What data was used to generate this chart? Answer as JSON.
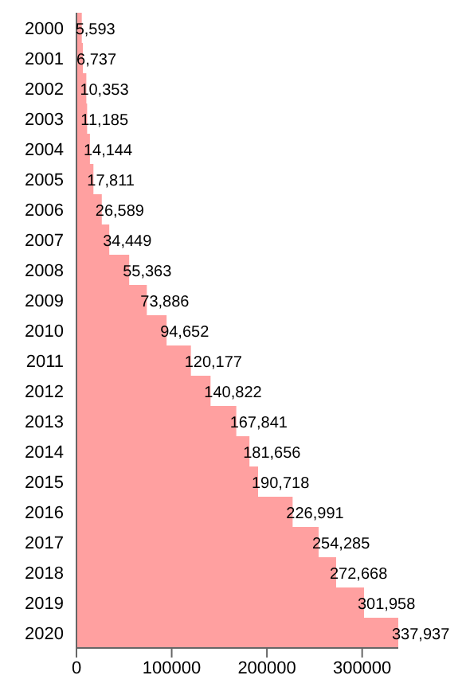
{
  "chart_data": {
    "type": "bar",
    "orientation": "horizontal",
    "categories": [
      "2000",
      "2001",
      "2002",
      "2003",
      "2004",
      "2005",
      "2006",
      "2007",
      "2008",
      "2009",
      "2010",
      "2011",
      "2012",
      "2013",
      "2014",
      "2015",
      "2016",
      "2017",
      "2018",
      "2019",
      "2020"
    ],
    "values": [
      5593,
      6737,
      10353,
      11185,
      14144,
      17811,
      26589,
      34449,
      55363,
      73886,
      94652,
      120177,
      140822,
      167841,
      181656,
      190718,
      226991,
      254285,
      272668,
      301958,
      337937
    ],
    "value_labels": [
      "5,593",
      "6,737",
      "10,353",
      "11,185",
      "14,144",
      "17,811",
      "26,589",
      "34,449",
      "55,363",
      "73,886",
      "94,652",
      "120,177",
      "140,822",
      "167,841",
      "181,656",
      "190,718",
      "226,991",
      "254,285",
      "272,668",
      "301,958",
      "337,937"
    ],
    "color": "#ffa0a0",
    "xlim": [
      0,
      337937
    ],
    "xticks": [
      0,
      100000,
      200000,
      300000
    ],
    "grid": false
  }
}
